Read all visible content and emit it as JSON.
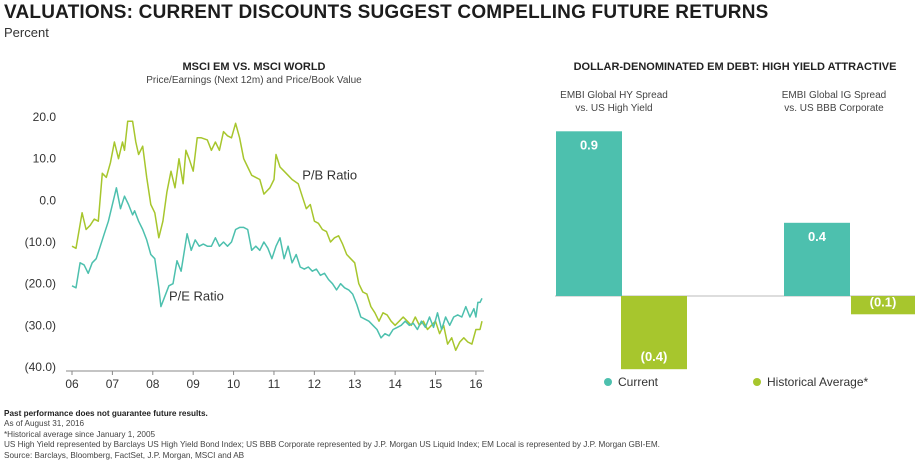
{
  "title": "VALUATIONS: CURRENT DISCOUNTS SUGGEST COMPELLING FUTURE RETURNS",
  "subtitle": "Percent",
  "colors": {
    "teal": "#4dc0ae",
    "green": "#a7c62d"
  },
  "footnotes": {
    "disclaimer": "Past performance does not guarantee future results.",
    "lines": [
      "As of August 31, 2016",
      "*Historical average since January 1, 2005",
      "US High Yield represented by Barclays US High Yield Bond Index; US BBB Corporate represented by J.P. Morgan US Liquid Index; EM Local is represented by J.P. Morgan GBI-EM.",
      "Source: Barclays, Bloomberg, FactSet, J.P. Morgan, MSCI and AB"
    ]
  },
  "chart_data": [
    {
      "type": "line",
      "title": "MSCI EM VS. MSCI WORLD",
      "subtitle": "Price/Earnings (Next 12m) and Price/Book Value",
      "ylim": [
        -40,
        20
      ],
      "yticks": [
        "20.0",
        "10.0",
        "0.0",
        "(10.0)",
        "(20.0)",
        "(30.0)",
        "(40.0)"
      ],
      "ytick_values": [
        20,
        10,
        0,
        -10,
        -20,
        -30,
        -40
      ],
      "xlim": [
        2006,
        2016.2
      ],
      "xticks": [
        "06",
        "07",
        "08",
        "09",
        "10",
        "11",
        "12",
        "13",
        "14",
        "15",
        "16"
      ],
      "xtick_values": [
        2006,
        2007,
        2008,
        2009,
        2010,
        2011,
        2012,
        2013,
        2014,
        2015,
        2016
      ],
      "series": [
        {
          "name": "P/B Ratio",
          "color": "#a7c62d",
          "points": [
            [
              2006.0,
              -11
            ],
            [
              2006.1,
              -11.5
            ],
            [
              2006.25,
              -3
            ],
            [
              2006.35,
              -7
            ],
            [
              2006.45,
              -6
            ],
            [
              2006.55,
              -4.5
            ],
            [
              2006.65,
              -5
            ],
            [
              2006.75,
              6.5
            ],
            [
              2006.85,
              5.5
            ],
            [
              2006.95,
              9
            ],
            [
              2007.05,
              14
            ],
            [
              2007.15,
              10
            ],
            [
              2007.25,
              14
            ],
            [
              2007.3,
              12
            ],
            [
              2007.38,
              19
            ],
            [
              2007.5,
              19
            ],
            [
              2007.58,
              14
            ],
            [
              2007.65,
              11
            ],
            [
              2007.75,
              13
            ],
            [
              2007.85,
              5.5
            ],
            [
              2007.95,
              -1
            ],
            [
              2008.05,
              -3
            ],
            [
              2008.15,
              -9
            ],
            [
              2008.25,
              -5
            ],
            [
              2008.35,
              2
            ],
            [
              2008.45,
              7
            ],
            [
              2008.55,
              3
            ],
            [
              2008.65,
              10
            ],
            [
              2008.75,
              4
            ],
            [
              2008.82,
              12
            ],
            [
              2008.9,
              10
            ],
            [
              2009.0,
              7
            ],
            [
              2009.1,
              15
            ],
            [
              2009.2,
              15
            ],
            [
              2009.35,
              14.5
            ],
            [
              2009.45,
              12
            ],
            [
              2009.55,
              14
            ],
            [
              2009.65,
              12
            ],
            [
              2009.75,
              16.5
            ],
            [
              2009.85,
              15.5
            ],
            [
              2009.95,
              15
            ],
            [
              2010.05,
              18.5
            ],
            [
              2010.15,
              15
            ],
            [
              2010.25,
              10
            ],
            [
              2010.35,
              8
            ],
            [
              2010.45,
              6
            ],
            [
              2010.55,
              5.5
            ],
            [
              2010.65,
              5
            ],
            [
              2010.75,
              1.5
            ],
            [
              2010.9,
              3
            ],
            [
              2011.0,
              5
            ],
            [
              2011.05,
              11
            ],
            [
              2011.15,
              8
            ],
            [
              2011.25,
              7
            ],
            [
              2011.35,
              6
            ],
            [
              2011.45,
              5
            ],
            [
              2011.6,
              4
            ],
            [
              2011.7,
              1
            ],
            [
              2011.8,
              -2
            ],
            [
              2011.9,
              -1
            ],
            [
              2012.0,
              -5
            ],
            [
              2012.1,
              -5.5
            ],
            [
              2012.2,
              -7
            ],
            [
              2012.3,
              -7.5
            ],
            [
              2012.4,
              -10
            ],
            [
              2012.5,
              -9
            ],
            [
              2012.6,
              -8.5
            ],
            [
              2012.7,
              -10.5
            ],
            [
              2012.8,
              -13
            ],
            [
              2012.9,
              -14
            ],
            [
              2013.0,
              -15
            ],
            [
              2013.1,
              -20
            ],
            [
              2013.2,
              -22
            ],
            [
              2013.3,
              -22.5
            ],
            [
              2013.4,
              -25.5
            ],
            [
              2013.5,
              -27
            ],
            [
              2013.6,
              -29
            ],
            [
              2013.7,
              -27
            ],
            [
              2013.8,
              -27.5
            ],
            [
              2013.9,
              -29
            ],
            [
              2014.0,
              -30
            ],
            [
              2014.1,
              -29
            ],
            [
              2014.2,
              -28
            ],
            [
              2014.3,
              -29
            ],
            [
              2014.4,
              -30
            ],
            [
              2014.5,
              -28
            ],
            [
              2014.6,
              -30
            ],
            [
              2014.7,
              -29
            ],
            [
              2014.8,
              -31
            ],
            [
              2014.9,
              -30
            ],
            [
              2015.0,
              -29
            ],
            [
              2015.1,
              -32
            ],
            [
              2015.2,
              -30
            ],
            [
              2015.3,
              -34.5
            ],
            [
              2015.4,
              -33
            ],
            [
              2015.5,
              -36
            ],
            [
              2015.6,
              -34
            ],
            [
              2015.7,
              -33
            ],
            [
              2015.8,
              -34
            ],
            [
              2015.9,
              -34.5
            ],
            [
              2016.0,
              -31
            ],
            [
              2016.1,
              -31
            ],
            [
              2016.15,
              -29
            ]
          ]
        },
        {
          "name": "P/E Ratio",
          "color": "#4dc0ae",
          "points": [
            [
              2006.0,
              -20.5
            ],
            [
              2006.1,
              -21
            ],
            [
              2006.2,
              -15
            ],
            [
              2006.3,
              -15.5
            ],
            [
              2006.4,
              -17.5
            ],
            [
              2006.5,
              -15
            ],
            [
              2006.6,
              -14
            ],
            [
              2006.7,
              -11
            ],
            [
              2006.8,
              -8
            ],
            [
              2006.9,
              -5
            ],
            [
              2006.95,
              -3
            ],
            [
              2007.05,
              1
            ],
            [
              2007.1,
              3
            ],
            [
              2007.2,
              -2
            ],
            [
              2007.3,
              1
            ],
            [
              2007.4,
              -1
            ],
            [
              2007.5,
              -3.5
            ],
            [
              2007.55,
              -2.5
            ],
            [
              2007.65,
              -5
            ],
            [
              2007.75,
              -7
            ],
            [
              2007.85,
              -9.5
            ],
            [
              2007.95,
              -13
            ],
            [
              2008.05,
              -14
            ],
            [
              2008.15,
              -21
            ],
            [
              2008.2,
              -25.5
            ],
            [
              2008.3,
              -23
            ],
            [
              2008.4,
              -20.5
            ],
            [
              2008.5,
              -20
            ],
            [
              2008.6,
              -14.5
            ],
            [
              2008.7,
              -17
            ],
            [
              2008.8,
              -11
            ],
            [
              2008.85,
              -8
            ],
            [
              2008.95,
              -12
            ],
            [
              2009.05,
              -9.5
            ],
            [
              2009.15,
              -11
            ],
            [
              2009.25,
              -10.5
            ],
            [
              2009.35,
              -11
            ],
            [
              2009.45,
              -11
            ],
            [
              2009.55,
              -9
            ],
            [
              2009.65,
              -11
            ],
            [
              2009.75,
              -10
            ],
            [
              2009.85,
              -11
            ],
            [
              2009.95,
              -10
            ],
            [
              2010.05,
              -7
            ],
            [
              2010.15,
              -6.5
            ],
            [
              2010.25,
              -6.5
            ],
            [
              2010.35,
              -7
            ],
            [
              2010.45,
              -12
            ],
            [
              2010.55,
              -11
            ],
            [
              2010.65,
              -12
            ],
            [
              2010.75,
              -10
            ],
            [
              2010.85,
              -11.5
            ],
            [
              2010.95,
              -14
            ],
            [
              2011.05,
              -11
            ],
            [
              2011.15,
              -9
            ],
            [
              2011.25,
              -14
            ],
            [
              2011.35,
              -11
            ],
            [
              2011.45,
              -15
            ],
            [
              2011.55,
              -13
            ],
            [
              2011.65,
              -16
            ],
            [
              2011.75,
              -16.5
            ],
            [
              2011.85,
              -16
            ],
            [
              2011.95,
              -17
            ],
            [
              2012.05,
              -16.5
            ],
            [
              2012.15,
              -18
            ],
            [
              2012.25,
              -17.5
            ],
            [
              2012.35,
              -19
            ],
            [
              2012.45,
              -20
            ],
            [
              2012.55,
              -21.5
            ],
            [
              2012.65,
              -20
            ],
            [
              2012.75,
              -21
            ],
            [
              2012.85,
              -21.5
            ],
            [
              2012.95,
              -22.5
            ],
            [
              2013.05,
              -25
            ],
            [
              2013.15,
              -28
            ],
            [
              2013.25,
              -28.5
            ],
            [
              2013.35,
              -29
            ],
            [
              2013.45,
              -30
            ],
            [
              2013.55,
              -31
            ],
            [
              2013.65,
              -33
            ],
            [
              2013.75,
              -32
            ],
            [
              2013.85,
              -32.5
            ],
            [
              2013.95,
              -31
            ],
            [
              2014.05,
              -30.5
            ],
            [
              2014.15,
              -30
            ],
            [
              2014.25,
              -29
            ],
            [
              2014.35,
              -30
            ],
            [
              2014.45,
              -29.5
            ],
            [
              2014.55,
              -31
            ],
            [
              2014.65,
              -29
            ],
            [
              2014.75,
              -30.5
            ],
            [
              2014.85,
              -28
            ],
            [
              2014.95,
              -30.5
            ],
            [
              2015.05,
              -27
            ],
            [
              2015.15,
              -31
            ],
            [
              2015.25,
              -28
            ],
            [
              2015.35,
              -30
            ],
            [
              2015.45,
              -28
            ],
            [
              2015.55,
              -27.5
            ],
            [
              2015.65,
              -28
            ],
            [
              2015.75,
              -25.5
            ],
            [
              2015.85,
              -28
            ],
            [
              2015.95,
              -26
            ],
            [
              2016.0,
              -28
            ],
            [
              2016.05,
              -24.5
            ],
            [
              2016.1,
              -24.5
            ],
            [
              2016.15,
              -23.5
            ]
          ]
        }
      ],
      "annotations": [
        {
          "text": "P/B Ratio",
          "x": 2011.7,
          "y": 5
        },
        {
          "text": "P/E Ratio",
          "x": 2008.4,
          "y": -24
        }
      ]
    },
    {
      "type": "bar",
      "title": "DOLLAR-DENOMINATED EM DEBT: HIGH YIELD ATTRACTIVE",
      "categories": [
        {
          "line1": "EMBI Global HY Spread",
          "line2": "vs. US High Yield"
        },
        {
          "line1": "EMBI Global IG Spread",
          "line2": "vs. US BBB Corporate"
        }
      ],
      "ylim": [
        -0.4,
        0.9
      ],
      "series": [
        {
          "name": "Current",
          "color": "#4dc0ae",
          "values": [
            0.9,
            0.4
          ],
          "labels": [
            "0.9",
            "0.4"
          ]
        },
        {
          "name": "Historical Average*",
          "color": "#a7c62d",
          "values": [
            -0.4,
            -0.1
          ],
          "labels": [
            "(0.4)",
            "(0.1)"
          ]
        }
      ],
      "legend": [
        "Current",
        "Historical Average*"
      ]
    }
  ]
}
